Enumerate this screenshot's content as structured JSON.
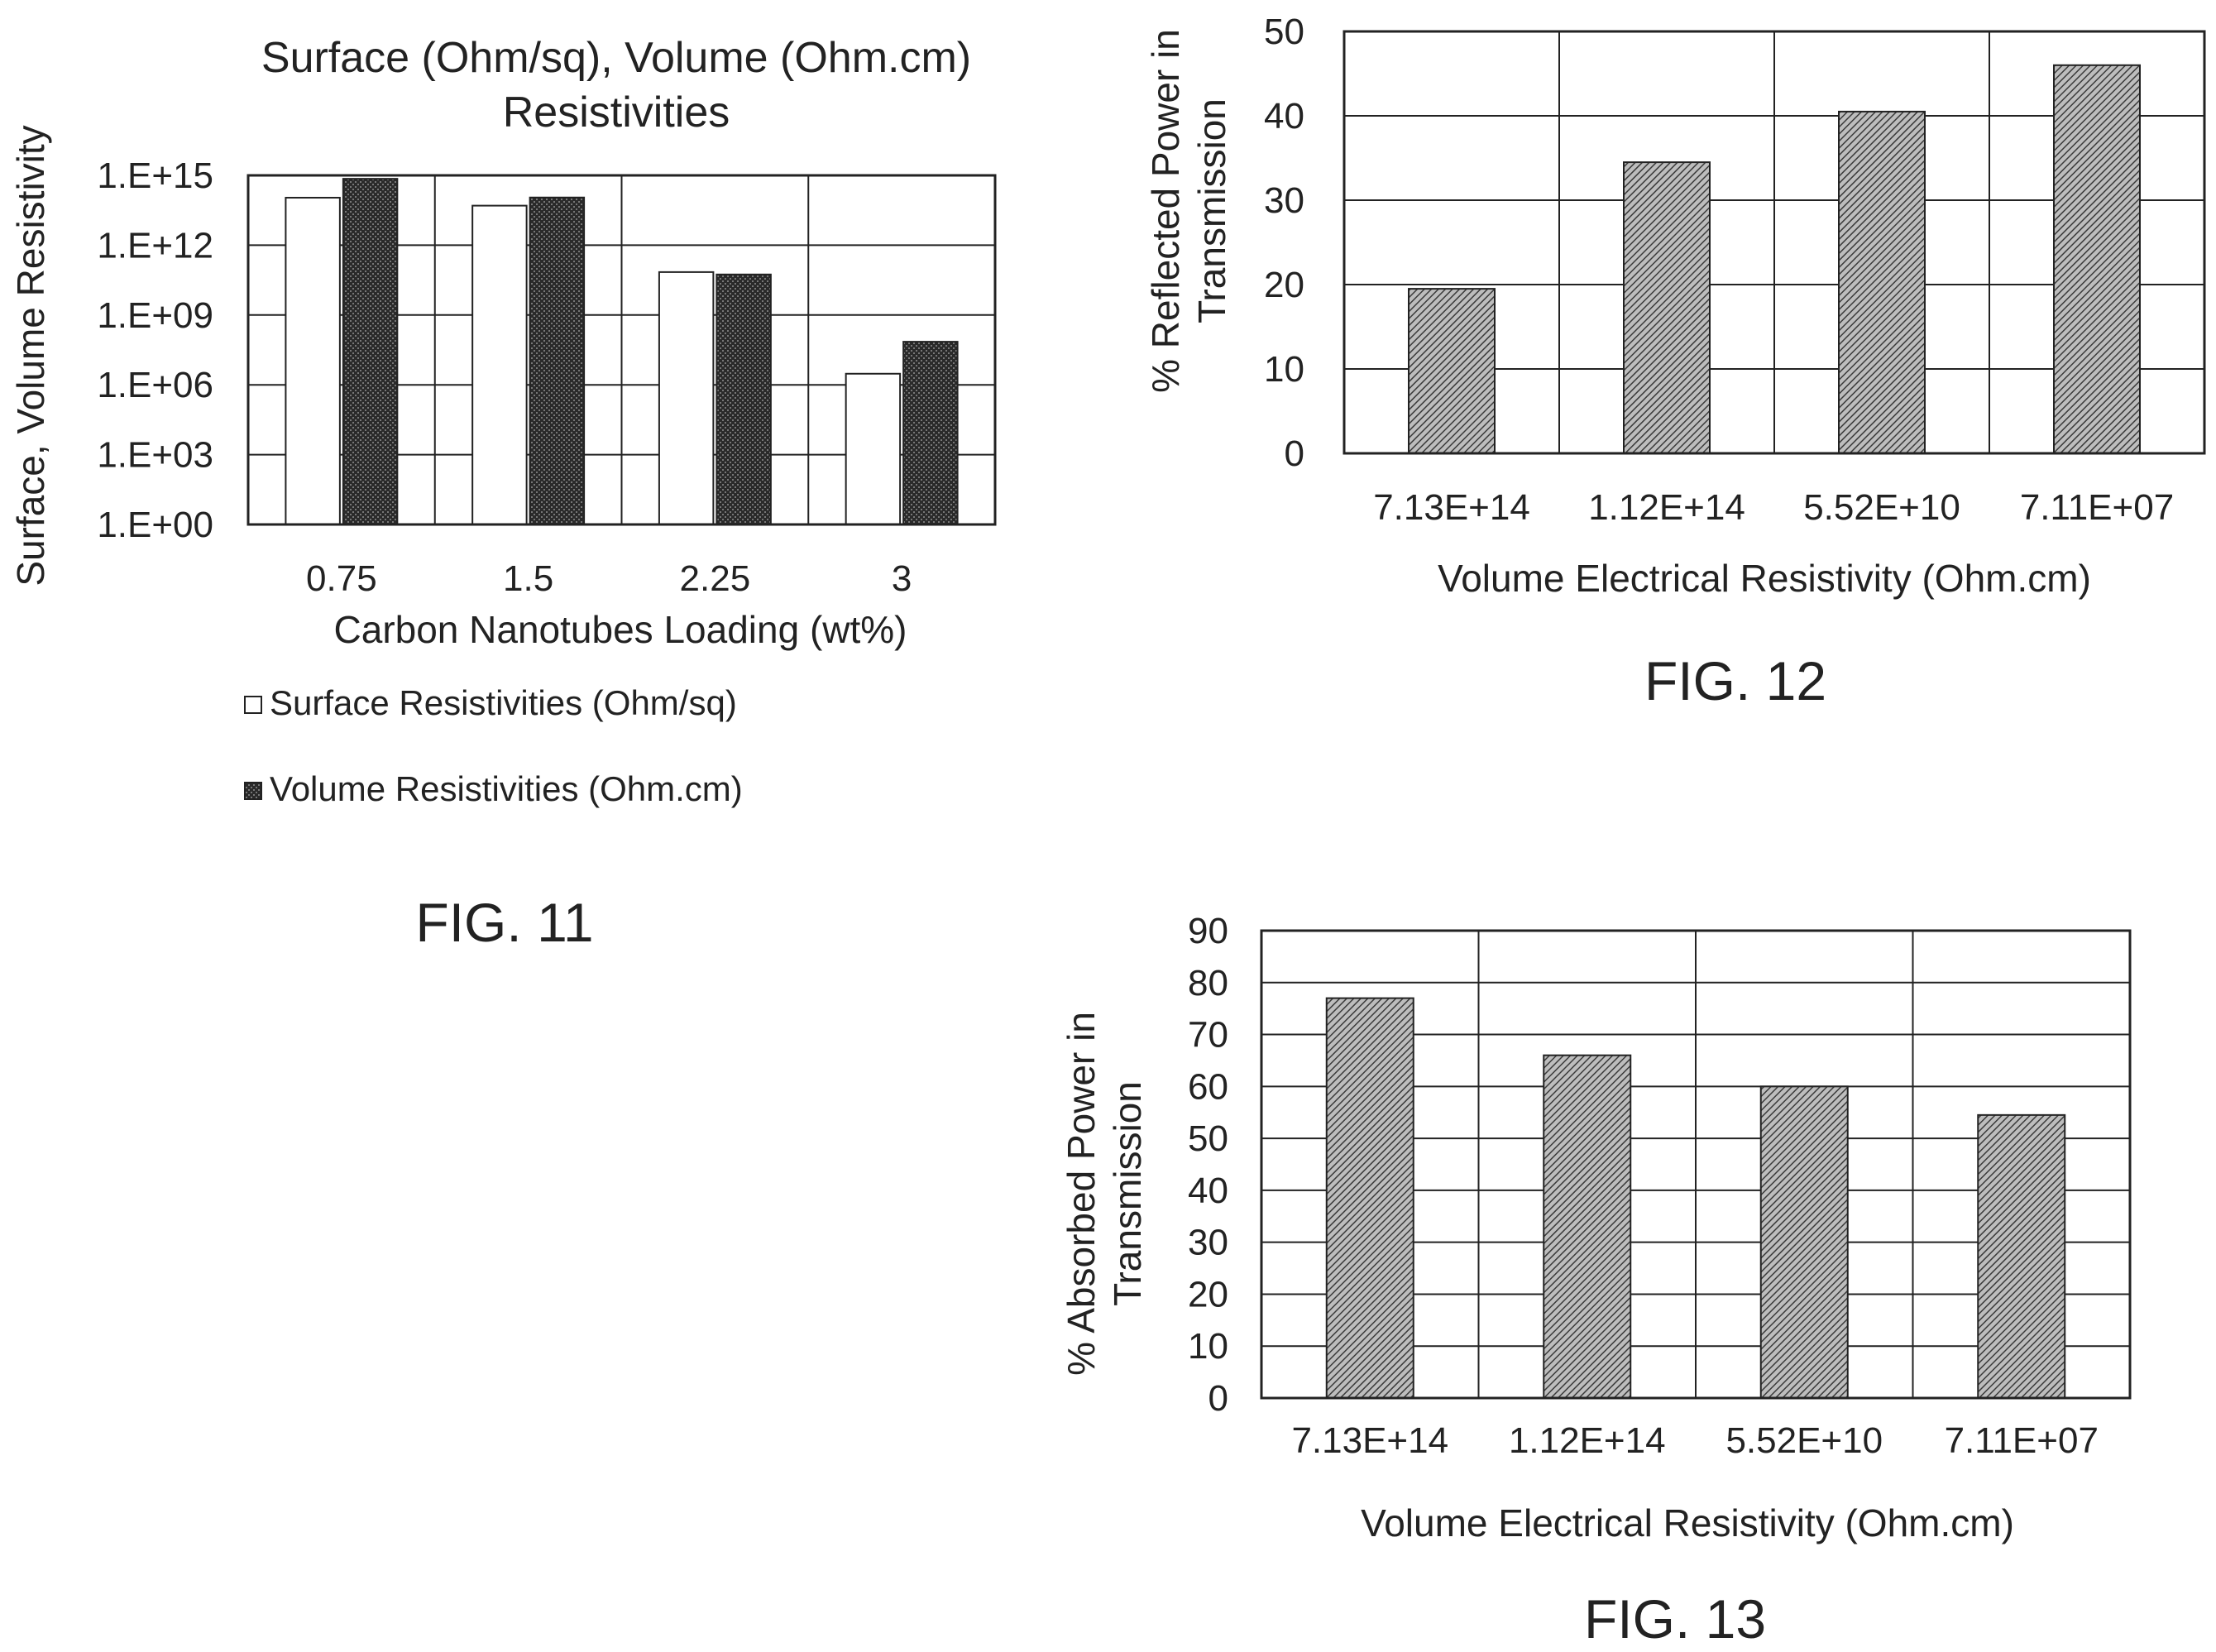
{
  "chart_data": [
    {
      "type": "bar",
      "figure_label": "FIG. 11",
      "title_lines": [
        "Surface (Ohm/sq), Volume (Ohm.cm)",
        "Resistivities"
      ],
      "xlabel": "Carbon Nanotubes Loading (wt%)",
      "ylabel": "Surface, Volume Resistivity",
      "y_scale": "log",
      "ylim": [
        1,
        1000000000000000.0
      ],
      "yticks": [
        "1.E+00",
        "1.E+03",
        "1.E+06",
        "1.E+09",
        "1.E+12",
        "1.E+15"
      ],
      "categories": [
        "0.75",
        "1.5",
        "2.25",
        "3"
      ],
      "series": [
        {
          "name": "Surface Resistivities (Ohm/sq)",
          "fill": "white",
          "values": [
            110000000000000.0,
            50000000000000.0,
            70000000000.0,
            3000000.0
          ]
        },
        {
          "name": "Volume Resistivities (Ohm.cm)",
          "fill": "dark-pattern",
          "values": [
            713000000000000.0,
            112000000000000.0,
            55200000000.0,
            71100000.0
          ]
        }
      ],
      "grid": true,
      "legend_position": "bottom-left"
    },
    {
      "type": "bar",
      "figure_label": "FIG. 12",
      "xlabel": "Volume Electrical Resistivity (Ohm.cm)",
      "ylabel_lines": [
        "% Reflected Power in",
        "Transmission"
      ],
      "ylim": [
        0,
        50
      ],
      "yticks": [
        "0",
        "10",
        "20",
        "30",
        "40",
        "50"
      ],
      "categories": [
        "7.13E+14",
        "1.12E+14",
        "5.52E+10",
        "7.11E+07"
      ],
      "values": [
        19.5,
        34.5,
        40.5,
        46
      ],
      "grid": true
    },
    {
      "type": "bar",
      "figure_label": "FIG. 13",
      "xlabel": "Volume Electrical Resistivity (Ohm.cm)",
      "ylabel_lines": [
        "% Absorbed Power in",
        "Transmission"
      ],
      "ylim": [
        0,
        90
      ],
      "yticks": [
        "0",
        "10",
        "20",
        "30",
        "40",
        "50",
        "60",
        "70",
        "80",
        "90"
      ],
      "categories": [
        "7.13E+14",
        "1.12E+14",
        "5.52E+10",
        "7.11E+07"
      ],
      "values": [
        77,
        66,
        60,
        54.5
      ],
      "grid": true
    }
  ],
  "colors": {
    "ink": "#222222",
    "bar_dark": "#2a2a2a",
    "bar_light": "#ffffff",
    "hatch_dark": "#3a3a3a",
    "hatch_light": "#bdbdbd"
  }
}
